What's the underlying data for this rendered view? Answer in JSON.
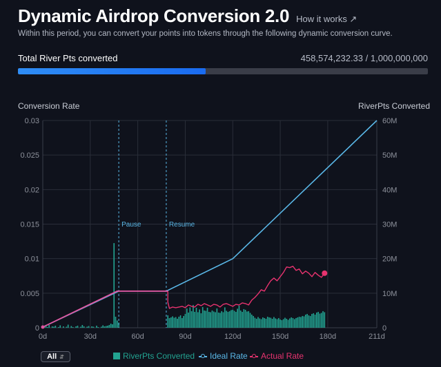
{
  "header": {
    "title": "Dynamic Airdrop Conversion 2.0",
    "how_link": "How it works ↗",
    "subtitle": "Within this period, you can convert your points into tokens through the following dynamic conversion curve."
  },
  "progress": {
    "label": "Total River Pts converted",
    "value_text": "458,574,232.33 / 1,000,000,000",
    "fraction": 0.4586
  },
  "colors": {
    "bars": "#22a391",
    "ideal": "#5ab8e8",
    "actual": "#e8336f",
    "flat": "#e0559f",
    "grid": "#2a2e39",
    "tick": "#8e929c"
  },
  "chart_data": {
    "type": "bar+line",
    "ylabel_left": "Conversion Rate",
    "ylabel_right": "RiverPts Converted",
    "x_range": [
      0,
      211
    ],
    "x_ticks": [
      {
        "x": 0,
        "label": "0d"
      },
      {
        "x": 30,
        "label": "30d"
      },
      {
        "x": 60,
        "label": "60d"
      },
      {
        "x": 90,
        "label": "90d"
      },
      {
        "x": 120,
        "label": "120d"
      },
      {
        "x": 150,
        "label": "150d"
      },
      {
        "x": 180,
        "label": "180d"
      },
      {
        "x": 211,
        "label": "211d"
      }
    ],
    "y_left_range": [
      0,
      0.03
    ],
    "y_left_ticks": [
      {
        "v": 0,
        "label": "0"
      },
      {
        "v": 0.005,
        "label": "0.005"
      },
      {
        "v": 0.01,
        "label": "0.01"
      },
      {
        "v": 0.015,
        "label": "0.015"
      },
      {
        "v": 0.02,
        "label": "0.02"
      },
      {
        "v": 0.025,
        "label": "0.025"
      },
      {
        "v": 0.03,
        "label": "0.03"
      }
    ],
    "y_right_range": [
      0,
      60
    ],
    "y_right_ticks": [
      {
        "v": 0,
        "label": "0"
      },
      {
        "v": 10,
        "label": "10M"
      },
      {
        "v": 20,
        "label": "20M"
      },
      {
        "v": 30,
        "label": "30M"
      },
      {
        "v": 40,
        "label": "40M"
      },
      {
        "v": 50,
        "label": "50M"
      },
      {
        "v": 60,
        "label": "60M"
      }
    ],
    "annotations": [
      {
        "x": 48,
        "label": "Pause"
      },
      {
        "x": 78,
        "label": "Resume"
      }
    ],
    "series": [
      {
        "name": "Ideal Rate",
        "kind": "line",
        "points": [
          [
            0,
            0.0001
          ],
          [
            48,
            0.0053
          ],
          [
            78,
            0.0053
          ],
          [
            120,
            0.01
          ],
          [
            211,
            0.03
          ]
        ]
      },
      {
        "name": "Actual Rate",
        "kind": "line",
        "points": [
          [
            0,
            0.0001
          ],
          [
            47,
            0.0053
          ],
          [
            79,
            0.0053
          ],
          [
            79,
            0.0037
          ],
          [
            80,
            0.0028
          ],
          [
            82,
            0.003
          ],
          [
            84,
            0.0029
          ],
          [
            86,
            0.003
          ],
          [
            88,
            0.0031
          ],
          [
            90,
            0.0029
          ],
          [
            92,
            0.0033
          ],
          [
            94,
            0.0031
          ],
          [
            96,
            0.003
          ],
          [
            98,
            0.0034
          ],
          [
            100,
            0.0032
          ],
          [
            102,
            0.0035
          ],
          [
            104,
            0.0033
          ],
          [
            106,
            0.0031
          ],
          [
            108,
            0.0034
          ],
          [
            110,
            0.0033
          ],
          [
            112,
            0.003
          ],
          [
            114,
            0.0034
          ],
          [
            116,
            0.0035
          ],
          [
            118,
            0.0033
          ],
          [
            120,
            0.0031
          ],
          [
            122,
            0.0034
          ],
          [
            124,
            0.0033
          ],
          [
            126,
            0.0036
          ],
          [
            128,
            0.0035
          ],
          [
            130,
            0.0033
          ],
          [
            132,
            0.004
          ],
          [
            134,
            0.0044
          ],
          [
            136,
            0.0049
          ],
          [
            138,
            0.0055
          ],
          [
            140,
            0.0053
          ],
          [
            142,
            0.0061
          ],
          [
            144,
            0.0068
          ],
          [
            146,
            0.0072
          ],
          [
            148,
            0.0068
          ],
          [
            150,
            0.0074
          ],
          [
            152,
            0.008
          ],
          [
            154,
            0.0088
          ],
          [
            156,
            0.0087
          ],
          [
            158,
            0.0089
          ],
          [
            160,
            0.0083
          ],
          [
            162,
            0.0085
          ],
          [
            164,
            0.0078
          ],
          [
            166,
            0.0082
          ],
          [
            168,
            0.0079
          ],
          [
            170,
            0.0074
          ],
          [
            172,
            0.008
          ],
          [
            174,
            0.0076
          ],
          [
            176,
            0.0073
          ],
          [
            178,
            0.0079
          ]
        ],
        "end_marker": [
          178,
          0.0079
        ]
      },
      {
        "name": "RiverPts Converted",
        "kind": "bar",
        "axis": "right",
        "values_by_day": [
          [
            1,
            0.3
          ],
          [
            2,
            0.5
          ],
          [
            3,
            0.2
          ],
          [
            4,
            0.8
          ],
          [
            6,
            0.4
          ],
          [
            7,
            0.3
          ],
          [
            8,
            0.6
          ],
          [
            10,
            0.2
          ],
          [
            11,
            0.7
          ],
          [
            13,
            0.4
          ],
          [
            15,
            0.3
          ],
          [
            16,
            0.9
          ],
          [
            18,
            0.5
          ],
          [
            19,
            0.2
          ],
          [
            21,
            0.4
          ],
          [
            22,
            0.6
          ],
          [
            24,
            0.3
          ],
          [
            25,
            0.8
          ],
          [
            26,
            0.4
          ],
          [
            28,
            0.3
          ],
          [
            29,
            0.5
          ],
          [
            31,
            0.4
          ],
          [
            32,
            0.3
          ],
          [
            34,
            0.6
          ],
          [
            35,
            0.2
          ],
          [
            37,
            0.3
          ],
          [
            38,
            0.7
          ],
          [
            39,
            0.4
          ],
          [
            40,
            0.5
          ],
          [
            41,
            0.6
          ],
          [
            42,
            0.8
          ],
          [
            43,
            1.2
          ],
          [
            44,
            1.0
          ],
          [
            45,
            24.5
          ],
          [
            46,
            3.2
          ],
          [
            47,
            2.1
          ],
          [
            48,
            1.5
          ],
          [
            79,
            3.6
          ],
          [
            80,
            2.8
          ],
          [
            81,
            3.0
          ],
          [
            82,
            3.3
          ],
          [
            83,
            2.9
          ],
          [
            84,
            3.1
          ],
          [
            85,
            2.6
          ],
          [
            86,
            3.2
          ],
          [
            87,
            3.6
          ],
          [
            88,
            2.8
          ],
          [
            89,
            3.4
          ],
          [
            90,
            4.0
          ],
          [
            91,
            5.6
          ],
          [
            92,
            4.4
          ],
          [
            93,
            5.9
          ],
          [
            94,
            4.8
          ],
          [
            95,
            6.6
          ],
          [
            96,
            4.6
          ],
          [
            97,
            5.8
          ],
          [
            98,
            4.5
          ],
          [
            99,
            5.3
          ],
          [
            100,
            4.2
          ],
          [
            101,
            6.0
          ],
          [
            102,
            5.0
          ],
          [
            103,
            4.9
          ],
          [
            104,
            5.8
          ],
          [
            105,
            4.6
          ],
          [
            106,
            4.5
          ],
          [
            107,
            5.0
          ],
          [
            108,
            4.7
          ],
          [
            109,
            4.5
          ],
          [
            110,
            5.6
          ],
          [
            111,
            4.4
          ],
          [
            112,
            4.3
          ],
          [
            113,
            4.8
          ],
          [
            114,
            4.5
          ],
          [
            115,
            5.9
          ],
          [
            116,
            4.9
          ],
          [
            117,
            4.6
          ],
          [
            118,
            4.8
          ],
          [
            119,
            5.1
          ],
          [
            120,
            5.2
          ],
          [
            121,
            4.9
          ],
          [
            122,
            4.6
          ],
          [
            123,
            5.5
          ],
          [
            124,
            6.4
          ],
          [
            125,
            5.0
          ],
          [
            126,
            4.6
          ],
          [
            127,
            5.4
          ],
          [
            128,
            5.2
          ],
          [
            129,
            4.7
          ],
          [
            130,
            4.8
          ],
          [
            131,
            4.3
          ],
          [
            132,
            3.8
          ],
          [
            133,
            3.4
          ],
          [
            134,
            2.9
          ],
          [
            135,
            2.6
          ],
          [
            136,
            3.1
          ],
          [
            137,
            2.7
          ],
          [
            138,
            2.5
          ],
          [
            139,
            3.0
          ],
          [
            140,
            2.8
          ],
          [
            141,
            2.6
          ],
          [
            142,
            3.2
          ],
          [
            143,
            3.0
          ],
          [
            144,
            2.9
          ],
          [
            145,
            2.6
          ],
          [
            146,
            3.1
          ],
          [
            147,
            2.7
          ],
          [
            148,
            2.5
          ],
          [
            149,
            2.8
          ],
          [
            150,
            2.4
          ],
          [
            151,
            2.2
          ],
          [
            152,
            2.5
          ],
          [
            153,
            2.9
          ],
          [
            154,
            2.6
          ],
          [
            155,
            2.3
          ],
          [
            156,
            2.7
          ],
          [
            157,
            3.0
          ],
          [
            158,
            2.8
          ],
          [
            159,
            2.5
          ],
          [
            160,
            2.8
          ],
          [
            161,
            3.0
          ],
          [
            162,
            3.2
          ],
          [
            163,
            3.1
          ],
          [
            164,
            3.4
          ],
          [
            165,
            3.3
          ],
          [
            166,
            3.8
          ],
          [
            167,
            4.0
          ],
          [
            168,
            3.6
          ],
          [
            169,
            3.4
          ],
          [
            170,
            4.0
          ],
          [
            171,
            4.2
          ],
          [
            172,
            3.8
          ],
          [
            173,
            4.4
          ],
          [
            174,
            4.6
          ],
          [
            175,
            4.1
          ],
          [
            176,
            4.3
          ],
          [
            177,
            4.8
          ],
          [
            178,
            4.5
          ]
        ]
      }
    ]
  },
  "legend": {
    "range_select": "All",
    "range_chevron": "⌃⌄",
    "bars_label": "RiverPts Converted",
    "ideal_label": "Ideal Rate",
    "actual_label": "Actual Rate"
  }
}
